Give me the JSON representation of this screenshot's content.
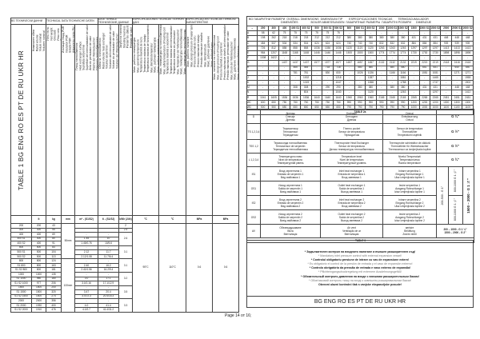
{
  "table1": {
    "title": "TABLE  1 BG ENG RO ES PT DE RU UKR HR",
    "lang_band": [
      "BG ТЕХНИЧЕСКИ ДАННИ",
      "TECHNICAL DATA  TECHNISCHE DATEN",
      "DATE TEHNICE  ТЕХНИЧЕСКИЕ ДАННЫЕ",
      "ESPECIFICACIONES TECNICAS  ТЕХНІЧНІ ДАНІ",
      "ESPECIFICAÇÕES TÉCNICAS  TEHNIČKE KARAKTERISTIKE"
    ],
    "headers": [
      "Номинален обем\nRated volume\nVolum nominal\nVolumen nominal\nVolume nominal\nNennvolumen\nНоминальный объем\nНомінальний об'єм\nNazivni volumen",
      "Нето тегло\nNet weight\nGreutate\nPeso neto\nPeso neto\nNettogewicht\nВес нетто\nВага нетто\nTežina",
      "Изолация твърд PUR\nInsulation PUR\nIzolație PUR\nAislamiento rígido PU\nIsolamento PU rígido\nIsolierung PU hart\nИзоляция твердый PU\nІзоляція PU\nPUR izolacija",
      "Площ топлообменник\nHeat exchanger surface\nSuprafața serpentinei\nSuperficie del intercambiador de calor\nÁrea do permutador de calor\nFläche der Wärmetauscher\nПлощадь теплообменника\nПлоща теплообмінника\nPovršina izmjenjivača topline",
      "Обем на топлообменник\nRated volume heat exchanger\nVolumul serpentinei\nVolumen del intercambiador de calor\nVolume do permutador de calor\nVolumen der Wärmetauscher\nОбъем теплообменника\nОб'єм теплообмінника\nVolumen izmjenjivača topline",
      "Загуби на топлина\nStanding heat loss\nPierderi de căldură\nPérdidas de calor\nPerdas de calor\nWärmeverlust\nТеплопотери\nТепловтрати\nGubitak topline",
      "Макс. работна температура\nMax. operating temperature\nTemperatura maximă de lucru\nTemperatura máxima de trabajo\nTemperatura máxima de funcionamento\nMax. Betriebstemperatur\nМакс. рабочая температура\nМакс. робоча температура\nMaksimalna radna temperatura",
      "Макс. температура на топлообменника\nMax. safety temperature of heating coil\nTemperatura maximă a serpentinei\nTemperatura máxima del intercambiador\nTemperatura máxima do permutador\nMax. Temperatur der Wärmetauscher\nМакс. температура теплообменника\nМакс. температура теплообмінника\nMaksimalna temperatura izmjenjivača",
      "Макс. работно налягане\nMax. design pressure of water tank\nPresiune maximă de lucru\nPresión máxima de trabajo\nPressão máxima de trabalho\nMax. Betriebsdruck\nМакс. рабочее давление\nМакс. робочий тиск\nMaksimalni radni tlak",
      "Макс. налягане на топлообменника\nMax. design pressure of heating coil\nPresiune maximă a serpentinei\nPresión máxima de diseño del intercambiador\nPressão máxima do permutador de calor\nMax. Druck der Wärmetauscher\nМакс. давление теплообменника\nМакс. тиск теплообмінника\nMaksimalni tlak izmjenjivača topline"
    ],
    "units": [
      "",
      "lt",
      "kg",
      "mm",
      "m² - (S1/S2)",
      "lt - (S1/S2)",
      "kWh (24h)",
      "°C",
      "°C",
      "MPa",
      "MPa"
    ],
    "rows": [
      [
        "200",
        "200",
        "43",
        "",
        ""
      ],
      [
        "300",
        "300",
        "55",
        "",
        ""
      ],
      [
        "400",
        "400",
        "69",
        "-",
        "-"
      ],
      [
        "400 S1",
        "400",
        "80",
        "1.45",
        "10"
      ],
      [
        "400 S2",
        "400",
        "91",
        "1.45/0.76",
        "10/5.6"
      ],
      [
        "500",
        "500",
        "83",
        "-",
        "-"
      ],
      [
        "500 S1",
        "500",
        "104",
        "2.12",
        "11.7"
      ],
      [
        "500 S2",
        "500",
        "113",
        "2.12/1.08",
        "11.7/6.4"
      ],
      [
        "800",
        "800",
        "124",
        "-",
        "-"
      ],
      [
        "S1 800",
        "800",
        "163",
        "2.40",
        "16.2"
      ],
      [
        "S1 S2 800",
        "800",
        "181",
        "2.40/1.56",
        "16.2/9.4"
      ],
      [
        "1000",
        "1000",
        "135",
        "-",
        "-"
      ],
      [
        "S1 1000",
        "980",
        "180",
        "3.0",
        "17.1"
      ],
      [
        "S1 S2 1000",
        "977",
        "206",
        "3.0/2.16",
        "17.1/12.9"
      ],
      [
        "1500",
        "1500",
        "200",
        "-",
        "-"
      ],
      [
        "S1 1500",
        "1500",
        "320",
        "3.47",
        "20.4"
      ],
      [
        "S1 S2 1500",
        "1500",
        "274",
        "3.47/2.3",
        "20.4/15.3"
      ],
      [
        "2000",
        "2000",
        "356",
        "-",
        "-"
      ],
      [
        "S1 2000",
        "1930",
        "400",
        "4.0",
        "41.4"
      ],
      [
        "S1 S2 2000",
        "1910",
        "476",
        "4.0/2.7",
        "41.4/31.2"
      ]
    ],
    "insulation": [
      {
        "value": "50mm",
        "rows": 8
      },
      {
        "value": "100mm",
        "rows": 12
      }
    ],
    "heat_loss": [
      {
        "value": "2",
        "rows": 1
      },
      {
        "value": "2.5",
        "rows": 1
      },
      {
        "value": "2.6",
        "rows": 3
      },
      {
        "value": "3.1",
        "rows": 3
      },
      {
        "value": "3.1",
        "rows": 3
      },
      {
        "value": "3.2",
        "rows": 3
      },
      {
        "value": "3.5",
        "rows": 3
      },
      {
        "value": "3.3",
        "rows": 3
      }
    ],
    "max_temp": "95°C",
    "max_coil_temp": "110°C",
    "max_pressure": "0.6",
    "max_coil_pressure": "0.6"
  },
  "table2a": {
    "title_line1": "BG ГАБАРИТНИ РАЗМЕРИ  OVERALL DIMENSIONS  DIMENSIUNI TIP        ESPECIFICACIONES TECNICAS       TERMOACUMULADOR",
    "title_line2": "DIMENSÕES                BOILER ABMESSUNGEN  ГАБАРИТНЫЕ РАЗМЕРЫ  ГАБАРИТНІ РОЗМІРИ      DIMENZIJE",
    "columns": [
      "–",
      "200",
      "300",
      "400",
      "400 S1",
      "400 S2",
      "500",
      "500 S1",
      "500 S2",
      "800",
      "800 S1",
      "800 S2",
      "1000",
      "1000 S1",
      "1000 S2",
      "1500",
      "1500 S1",
      "1500 S2",
      "2000",
      "2000 S1",
      "2000 S2"
    ],
    "rows": [
      [
        "A",
        "58",
        "62",
        "75",
        "75",
        "75",
        "75",
        "75",
        "75",
        "-",
        "-",
        "-",
        "-",
        "-",
        "-",
        "-",
        "-",
        "-",
        "-",
        "-",
        "-"
      ],
      [
        "B",
        "198",
        "262",
        "218",
        "218",
        "218",
        "212",
        "212",
        "212",
        "380",
        "380",
        "380",
        "380",
        "380",
        "380",
        "431",
        "431",
        "431",
        "448",
        "448",
        "448"
      ],
      [
        "C",
        "484",
        "537",
        "534",
        "534",
        "534",
        "624",
        "624",
        "624",
        "740",
        "740",
        "740",
        "832",
        "832",
        "832",
        "884",
        "884",
        "884",
        "939",
        "939",
        "939"
      ],
      [
        "D",
        "726",
        "812",
        "858",
        "858",
        "858",
        "1036",
        "1036",
        "1036",
        "1120",
        "1120",
        "1120",
        "1263",
        "1263",
        "1263",
        "1297",
        "1297",
        "1297",
        "1413",
        "1413",
        "1413"
      ],
      [
        "E",
        "984",
        "1207",
        "1168",
        "1168",
        "1168",
        "1446",
        "1446",
        "1446",
        "1500",
        "1500",
        "1500",
        "1774",
        "1774",
        "1774",
        "1730",
        "1730",
        "1730",
        "1898",
        "1898",
        "1898"
      ],
      [
        "F",
        "1308",
        "1622",
        "-",
        "-",
        "-",
        "-",
        "-",
        "-",
        "-",
        "-",
        "-",
        "-",
        "-",
        "-",
        "-",
        "-",
        "-",
        "-",
        "-",
        "-"
      ],
      [
        "G",
        "-",
        "-",
        "1437",
        "1437",
        "1437",
        "1577",
        "1577",
        "1577",
        "1657",
        "1657",
        "1657",
        "2132",
        "2132",
        "2132",
        "2219",
        "2219",
        "2219",
        "2418",
        "2418",
        "2418"
      ],
      [
        "H",
        "-",
        "-",
        "-",
        "465",
        "465",
        "-",
        "718",
        "718",
        "-",
        "580",
        "580",
        "-",
        "580",
        "580",
        "-",
        "651",
        "651",
        "-",
        "640",
        "640"
      ],
      [
        "I",
        "-",
        "-",
        "-",
        "781",
        "781",
        "-",
        "830",
        "830",
        "-",
        "1026",
        "1026",
        "-",
        "1166",
        "1166",
        "-",
        "1081",
        "1081",
        "-",
        "1271",
        "1271"
      ],
      [
        "J",
        "-",
        "-",
        "-",
        "-",
        "1002",
        "-",
        "-",
        "1218",
        "-",
        "-",
        "1287",
        "-",
        "-",
        "1581",
        "-",
        "-",
        "1465",
        "-",
        "-",
        "1955"
      ],
      [
        "K",
        "-",
        "-",
        "-",
        "-",
        "1019",
        "-",
        "-",
        "1047",
        "-",
        "-",
        "1558",
        "-",
        "-",
        "1788",
        "-",
        "-",
        "1737",
        "-",
        "-",
        "1902"
      ],
      [
        "M",
        "-",
        "-",
        "-",
        "308",
        "308",
        "-",
        "290",
        "290",
        "-",
        "380",
        "380",
        "-",
        "380",
        "380",
        "-",
        "431",
        "431",
        "-",
        "448",
        "448"
      ],
      [
        "N",
        "-",
        "-",
        "-",
        "-",
        "804",
        "-",
        "-",
        "1040",
        "-",
        "-",
        "1120",
        "-",
        "-",
        "1263",
        "-",
        "-",
        "1297",
        "-",
        "-",
        "1412"
      ],
      [
        "R",
        "1041",
        "1605",
        "1536",
        "1536",
        "1536",
        "1640",
        "1640",
        "1640",
        "1960",
        "1960",
        "1960",
        "2165",
        "2165",
        "2165",
        "2265",
        "2265",
        "2265",
        "2451",
        "2451",
        "2451"
      ],
      [
        "ØC",
        "600",
        "650",
        "750",
        "750",
        "750",
        "750",
        "750",
        "750",
        "990",
        "990",
        "990",
        "990",
        "990",
        "990",
        "1200",
        "1200",
        "1200",
        "1300",
        "1300",
        "1300"
      ],
      [
        "ØD",
        "500",
        "550",
        "650",
        "650",
        "650",
        "650",
        "650",
        "650",
        "790",
        "790",
        "790",
        "790",
        "790",
        "790",
        "1000",
        "1000",
        "1000",
        "1100",
        "1100",
        "1100"
      ]
    ],
    "footer": "TABLE 2a"
  },
  "table3": {
    "rows": [
      {
        "code": "D",
        "bg": "Дренаж\nDrenaje\nДренаж",
        "en": "Drainage\nDrenagem\nДренаж",
        "ro": "Drenaj\nEntwässerung\nOdvod",
        "size": "G ¾\""
      },
      {
        "code": "TS 1,2,3,4",
        "bg": "Термосензор\nTermosensor\nТермодатчик",
        "en": "Thermo pocket\nSensor de temperatura\nТермодатчик",
        "ro": "Sensor de temperatura\nThermofühler\nTemperaturni osjetnik",
        "size": "G ½\""
      },
      {
        "code": "TSS 1,2",
        "bg": "Термосонда топлообменник\nTermosensor de serpentin\nТермодатчик теплообмінника",
        "en": "Thermoprobe Heat Exchanger\nSensor de temperatura\nДатчик температуры теплообменника",
        "ro": "Thermoprobe schimbător de căldură\nThermofühler für Wärmetauscher\nThermosensor za izmjenjivača topline",
        "size": "G ½\""
      },
      {
        "code": "L 1,2,3,4",
        "bg": "Температурно ниво\nNivel de temperatura\nТемпературний рівень",
        "en": "Temperature level\nNível de temperatura\nТемпературный уровень",
        "ro": "Nivelul Temperaturii\nTemperaturniveau\nRazina temperature",
        "size": "G ¾\""
      },
      {
        "code": "IS1",
        "bg": "Вход серпентина 1\nEntrada de serpentín 1\nВхід змійовика 1",
        "en": "Inlet heat exchanger 1\nEntrada de serpentina 1\nВход змеевика 1",
        "ro": "Intrare serpentina 1\nEingang Rohrschlange 1\nUlaz izmjenjivača topline 1"
      },
      {
        "code": "OS1",
        "bg": "Изход серпентина 1\nSalida de serpentín 1\nВихід змійовика 1",
        "en": "Outlet heat exchanger 1\nSaída de serpentina 1\nВыход змеевика 1",
        "ro": "Iesire serpentina 1\nAusgang Rohrschlange 1\nIzlaz izmjenjivača topline 1"
      },
      {
        "code": "IS2",
        "bg": "Вход серпентина 2\nEntrada de serpentín 2\nВхід змійовика 2",
        "en": "Inlet heat exchanger 2\nEntrada de serpentina 2\nВход змеевика 2",
        "ro": "Intrare serpentina 2\nEingang Rohrschlange 2\nUlaz izmjenjivača topline 2"
      },
      {
        "code": "OS2",
        "bg": "Изход серпентина 2\nSalida de serpentín 2\nВихід змійовика 2",
        "en": "Outlet heat exchanger 2\nSaída de serpentina 2\nВыход змеевика 2",
        "ro": "Iesire serpentina 2\nAusgang Rohrschlange 2\nIzlaz izmjenjivača topline 2"
      },
      {
        "code": "AV",
        "bg": "Обезвъздушаване\nBriza\nВентиляція",
        "en": "Air vent\nVentilação de ar\nВентиляция",
        "ro": "aerisire\nBelüftung\nZračni ventil",
        "size": "200 – 1000 - G 1 ¼\"\n1500 – 2000 - G 2\""
      }
    ],
    "coil_sizes": {
      "small": "200-500 - G 1\"",
      "mid_1": "800-1000 G 1 ¼\"",
      "mid_2": "800-1000 G 1 ¼\"",
      "large": "1500 – 2000 - G 1 ½\""
    },
    "footer": "TABLE 3"
  },
  "notes": [
    {
      "text": "* Задължителен контрол на входното налягане и външен разширителен съд!",
      "style": "b"
    },
    {
      "text": "* Mandatory inlet pressure control with external expansion vessel!",
      "style": "n"
    },
    {
      "text": "* Controlul obligatoriu presiune de intrare cu vas de expansiune extern!",
      "style": "b"
    },
    {
      "text": "* Es obligatorio el control de la presión de entrada y el vaso de expansión externo!",
      "style": "n"
    },
    {
      "text": "* Controlo obrigatório da pressão de entrada e vaso externo de expansão!",
      "style": "b"
    },
    {
      "text": "* Pflichteingangsdruckregelung mit externem Ausdehnungsgefäß!",
      "style": "n"
    },
    {
      "text": "* Обязательный контроль давления на входе с внешним расширительным баком!",
      "style": "b"
    },
    {
      "text": "* Обов'язковий контроль тиску на вході з зовнішнім розширювальним баком!",
      "style": "n"
    },
    {
      "text": "Obvezni ulazni kontrolni tlak s vanjske ekspanzijske posude!",
      "style": "b"
    }
  ],
  "languages": "BG ENG RO ES PT DE RU UKR HR",
  "page_number": "Page 14 от 16;"
}
